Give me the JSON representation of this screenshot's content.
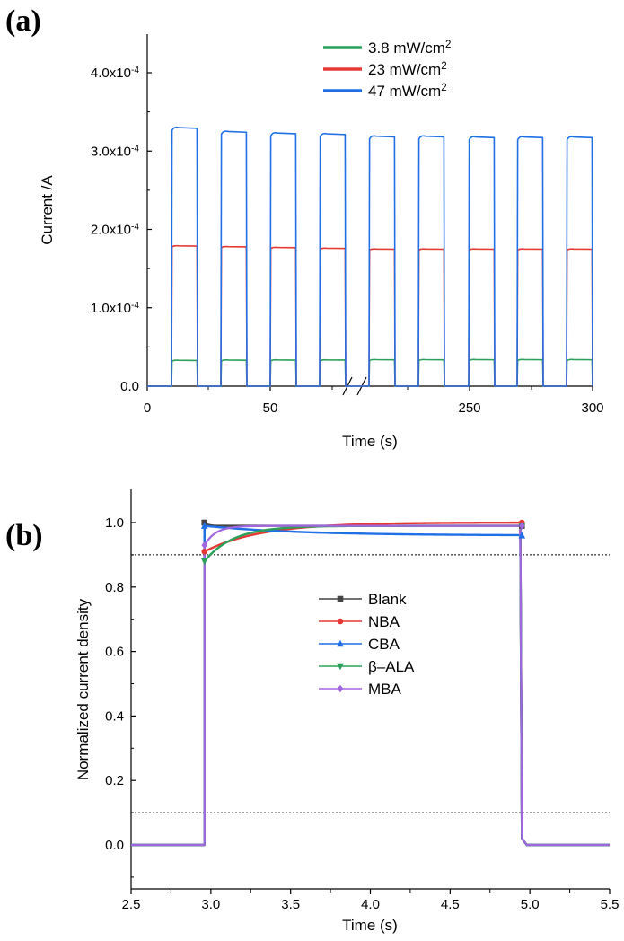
{
  "chart_data": [
    {
      "panel_label": "(a)",
      "type": "line",
      "xlabel": "Time (s)",
      "ylabel": "Current /A",
      "x_ticks": [
        "0",
        "50",
        "250",
        "300"
      ],
      "y_ticks": [
        "0.0",
        "1.0x10^-4",
        "2.0x10^-4",
        "3.0x10^-4",
        "4.0x10^-4"
      ],
      "x_axis_break": true,
      "ylim": [
        -1.5e-05,
        0.00046
      ],
      "cycles": 9,
      "legend_position": "top-right",
      "series": [
        {
          "name": "3.8 mW/cm^2",
          "color": "#2ca05a",
          "on_values": [
            3.3e-05,
            3.33e-05,
            3.34e-05,
            3.35e-05,
            3.38e-05,
            3.38e-05,
            3.39e-05,
            3.39e-05,
            3.39e-05
          ]
        },
        {
          "name": "23 mW/cm^2",
          "color": "#e53935",
          "on_values": [
            0.000179,
            0.000178,
            0.000177,
            0.000176,
            0.000175,
            0.000175,
            0.000175,
            0.000175,
            0.000175
          ]
        },
        {
          "name": "47 mW/cm^2",
          "color": "#1f6fe5",
          "on_values": [
            0.00033,
            0.000325,
            0.000323,
            0.000322,
            0.000319,
            0.000319,
            0.000318,
            0.000318,
            0.000318
          ]
        }
      ],
      "off_value": 0.0
    },
    {
      "panel_label": "(b)",
      "type": "line",
      "xlabel": "Time (s)",
      "ylabel": "Normalized current density",
      "xlim": [
        2.5,
        5.5
      ],
      "ylim": [
        -0.1,
        1.1
      ],
      "x_ticks": [
        "2.5",
        "3.0",
        "3.5",
        "4.0",
        "4.5",
        "5.0",
        "5.5"
      ],
      "y_ticks": [
        "0.0",
        "0.2",
        "0.4",
        "0.6",
        "0.8",
        "1.0"
      ],
      "reference_lines": [
        0.9,
        0.1
      ],
      "rise_time": 2.96,
      "fall_time": 4.95,
      "legend_position": "center",
      "series": [
        {
          "name": "Blank",
          "color": "#444444",
          "marker": "square",
          "start": 1.0,
          "end": 0.99,
          "tau": 0.02
        },
        {
          "name": "NBA",
          "color": "#e53935",
          "marker": "circle",
          "start": 0.91,
          "end": 1.0,
          "tau": 0.35
        },
        {
          "name": "CBA",
          "color": "#1f6fe5",
          "marker": "triangle-up",
          "start": 0.99,
          "end": 0.96,
          "tau": 0.6
        },
        {
          "name": "β–ALA",
          "color": "#2ca05a",
          "marker": "triangle-down",
          "start": 0.88,
          "end": 0.99,
          "tau": 0.18
        },
        {
          "name": "MBA",
          "color": "#a066e0",
          "marker": "diamond",
          "start": 0.93,
          "end": 0.99,
          "tau": 0.07
        }
      ]
    }
  ]
}
